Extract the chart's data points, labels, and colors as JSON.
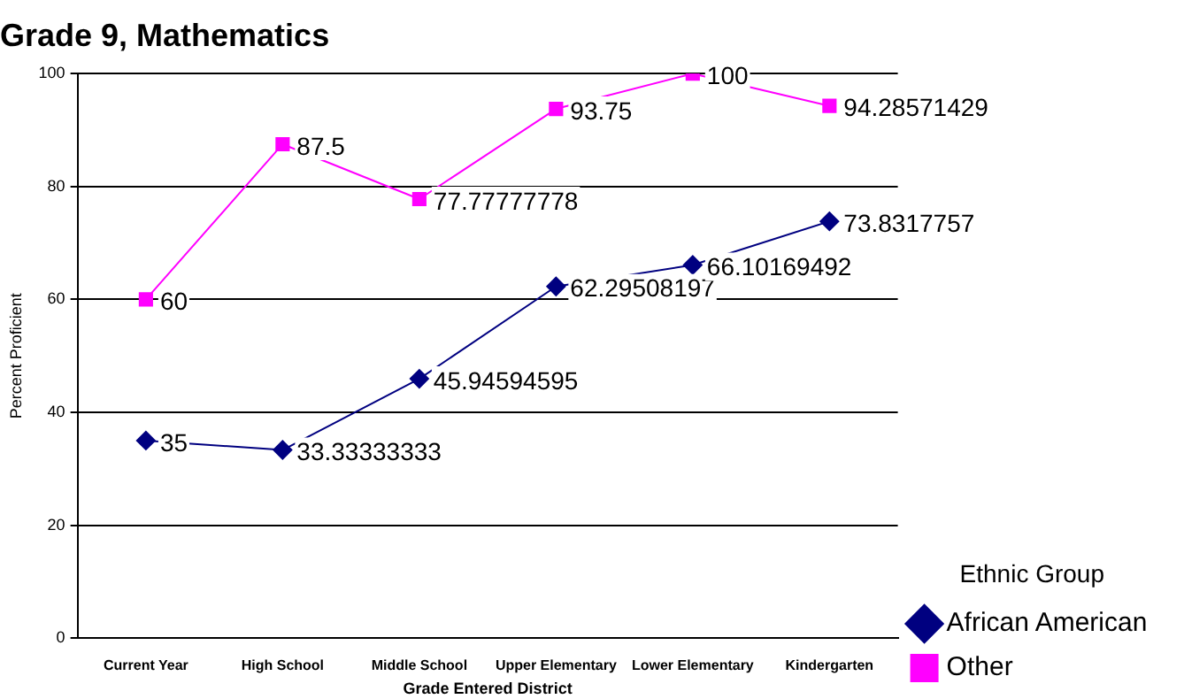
{
  "chart_data": {
    "type": "line",
    "title": "Grade 9, Mathematics",
    "xlabel": "Grade Entered District",
    "ylabel": "Percent Proficient",
    "legend_title": "Ethnic Group",
    "categories": [
      "Current Year",
      "High School",
      "Middle School",
      "Upper Elementary",
      "Lower Elementary",
      "Kindergarten"
    ],
    "series": [
      {
        "name": "African American",
        "color": "#000080",
        "marker": "diamond",
        "values": [
          35,
          33.33333333,
          45.94594595,
          62.29508197,
          66.10169492,
          73.8317757
        ]
      },
      {
        "name": "Other",
        "color": "#ff00ff",
        "marker": "square",
        "values": [
          60,
          87.5,
          77.77777778,
          93.75,
          100,
          94.28571429
        ]
      }
    ],
    "ylim": [
      0,
      100
    ],
    "yticks": [
      0,
      20,
      40,
      60,
      80,
      100
    ],
    "grid": "y",
    "legend": "right",
    "data_labels": true
  }
}
